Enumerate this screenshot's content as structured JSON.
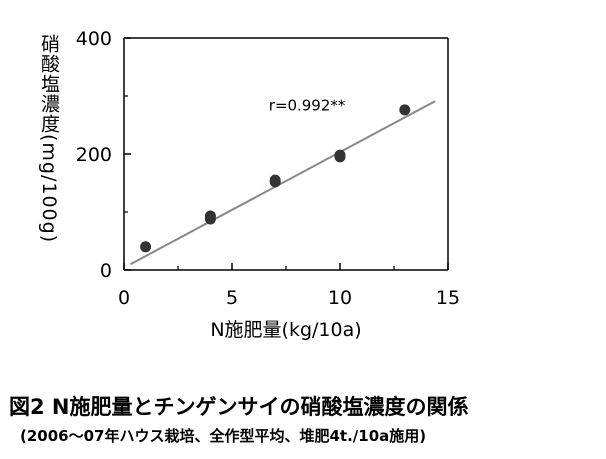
{
  "chart_data": {
    "type": "scatter",
    "title": "",
    "xlabel": "N施肥量(kg/10a)",
    "ylabel": "硝酸塩濃度(mg/100g)",
    "xlim": [
      0,
      15
    ],
    "ylim": [
      0,
      400
    ],
    "x_ticks": [
      "0",
      "5",
      "10",
      "15"
    ],
    "y_ticks": [
      "0",
      "200",
      "400"
    ],
    "grid": false,
    "legend": "none",
    "points": [
      {
        "x": 1,
        "y": 40
      },
      {
        "x": 4,
        "y": 88
      },
      {
        "x": 4,
        "y": 93
      },
      {
        "x": 7,
        "y": 152
      },
      {
        "x": 7,
        "y": 155
      },
      {
        "x": 10,
        "y": 195
      },
      {
        "x": 10,
        "y": 198
      },
      {
        "x": 13,
        "y": 276
      }
    ],
    "trendline": {
      "x": [
        0.3,
        14.4
      ],
      "y": [
        10,
        291
      ]
    },
    "annotation": "r=0.992**",
    "marker_color": "#333333",
    "trendline_color": "#888888"
  },
  "caption": {
    "main": "図2 N施肥量とチンゲンサイの硝酸塩濃度の関係",
    "sub": "(2006～07年ハウス栽培、全作型平均、堆肥4t./10a施用)"
  }
}
